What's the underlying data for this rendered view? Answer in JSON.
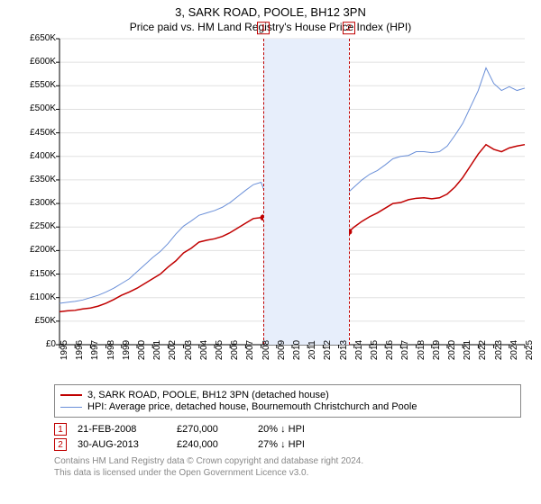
{
  "title": "3, SARK ROAD, POOLE, BH12 3PN",
  "subtitle": "Price paid vs. HM Land Registry's House Price Index (HPI)",
  "chart": {
    "type": "line",
    "background_color": "#ffffff",
    "grid_color": "#e0e0e0",
    "axis_color": "#000000",
    "font_size_tick": 10,
    "x_axis": {
      "min": 1995,
      "max": 2025,
      "step": 1
    },
    "y_axis": {
      "min": 0,
      "max": 650000,
      "ticks": [
        "£0",
        "£50K",
        "£100K",
        "£150K",
        "£200K",
        "£250K",
        "£300K",
        "£350K",
        "£400K",
        "£450K",
        "£500K",
        "£550K",
        "£600K",
        "£650K"
      ]
    },
    "band": {
      "from": 2008.14,
      "to": 2013.66,
      "color": "#e7eefb"
    },
    "markers": [
      {
        "num": "1",
        "x": 2008.14,
        "color": "#c00000"
      },
      {
        "num": "2",
        "x": 2013.66,
        "color": "#c00000"
      }
    ],
    "series": {
      "property": {
        "label": "3, SARK ROAD, POOLE, BH12 3PN (detached house)",
        "color": "#c00000",
        "width": 1.5,
        "data": [
          [
            1995.0,
            70000
          ],
          [
            1995.5,
            72000
          ],
          [
            1996.0,
            73000
          ],
          [
            1996.5,
            76000
          ],
          [
            1997.0,
            78000
          ],
          [
            1997.5,
            82000
          ],
          [
            1998.0,
            88000
          ],
          [
            1998.5,
            96000
          ],
          [
            1999.0,
            105000
          ],
          [
            1999.5,
            112000
          ],
          [
            2000.0,
            120000
          ],
          [
            2000.5,
            130000
          ],
          [
            2001.0,
            140000
          ],
          [
            2001.5,
            150000
          ],
          [
            2002.0,
            165000
          ],
          [
            2002.5,
            178000
          ],
          [
            2003.0,
            195000
          ],
          [
            2003.5,
            205000
          ],
          [
            2004.0,
            218000
          ],
          [
            2004.5,
            222000
          ],
          [
            2005.0,
            225000
          ],
          [
            2005.5,
            230000
          ],
          [
            2006.0,
            238000
          ],
          [
            2006.5,
            248000
          ],
          [
            2007.0,
            258000
          ],
          [
            2007.5,
            268000
          ],
          [
            2008.0,
            270000
          ],
          [
            2008.14,
            270000
          ],
          [
            2008.5,
            255000
          ],
          [
            2009.0,
            225000
          ],
          [
            2009.5,
            235000
          ],
          [
            2010.0,
            248000
          ],
          [
            2010.5,
            252000
          ],
          [
            2011.0,
            250000
          ],
          [
            2011.5,
            246000
          ],
          [
            2012.0,
            250000
          ],
          [
            2012.5,
            248000
          ],
          [
            2013.0,
            242000
          ],
          [
            2013.5,
            240000
          ],
          [
            2013.66,
            240000
          ],
          [
            2014.0,
            250000
          ],
          [
            2014.5,
            262000
          ],
          [
            2015.0,
            272000
          ],
          [
            2015.5,
            280000
          ],
          [
            2016.0,
            290000
          ],
          [
            2016.5,
            300000
          ],
          [
            2017.0,
            302000
          ],
          [
            2017.5,
            308000
          ],
          [
            2018.0,
            311000
          ],
          [
            2018.5,
            312000
          ],
          [
            2019.0,
            310000
          ],
          [
            2019.5,
            312000
          ],
          [
            2020.0,
            320000
          ],
          [
            2020.5,
            335000
          ],
          [
            2021.0,
            355000
          ],
          [
            2021.5,
            380000
          ],
          [
            2022.0,
            405000
          ],
          [
            2022.5,
            425000
          ],
          [
            2023.0,
            415000
          ],
          [
            2023.5,
            410000
          ],
          [
            2024.0,
            418000
          ],
          [
            2024.5,
            422000
          ],
          [
            2025.0,
            425000
          ]
        ],
        "dots": [
          {
            "x": 2008.14,
            "y": 270000
          },
          {
            "x": 2013.66,
            "y": 240000
          }
        ]
      },
      "hpi": {
        "label": "HPI: Average price, detached house, Bournemouth Christchurch and Poole",
        "color": "#6a8fd8",
        "width": 1.0,
        "data": [
          [
            1995.0,
            88000
          ],
          [
            1995.5,
            90000
          ],
          [
            1996.0,
            92000
          ],
          [
            1996.5,
            95000
          ],
          [
            1997.0,
            100000
          ],
          [
            1997.5,
            105000
          ],
          [
            1998.0,
            112000
          ],
          [
            1998.5,
            120000
          ],
          [
            1999.0,
            130000
          ],
          [
            1999.5,
            140000
          ],
          [
            2000.0,
            155000
          ],
          [
            2000.5,
            170000
          ],
          [
            2001.0,
            185000
          ],
          [
            2001.5,
            198000
          ],
          [
            2002.0,
            215000
          ],
          [
            2002.5,
            235000
          ],
          [
            2003.0,
            252000
          ],
          [
            2003.5,
            263000
          ],
          [
            2004.0,
            275000
          ],
          [
            2004.5,
            280000
          ],
          [
            2005.0,
            285000
          ],
          [
            2005.5,
            292000
          ],
          [
            2006.0,
            302000
          ],
          [
            2006.5,
            315000
          ],
          [
            2007.0,
            328000
          ],
          [
            2007.5,
            340000
          ],
          [
            2008.0,
            345000
          ],
          [
            2008.5,
            300000
          ],
          [
            2009.0,
            295000
          ],
          [
            2009.5,
            305000
          ],
          [
            2010.0,
            320000
          ],
          [
            2010.5,
            322000
          ],
          [
            2011.0,
            315000
          ],
          [
            2011.5,
            312000
          ],
          [
            2012.0,
            320000
          ],
          [
            2012.5,
            320000
          ],
          [
            2013.0,
            315000
          ],
          [
            2013.5,
            320000
          ],
          [
            2014.0,
            335000
          ],
          [
            2014.5,
            350000
          ],
          [
            2015.0,
            362000
          ],
          [
            2015.5,
            370000
          ],
          [
            2016.0,
            382000
          ],
          [
            2016.5,
            395000
          ],
          [
            2017.0,
            400000
          ],
          [
            2017.5,
            402000
          ],
          [
            2018.0,
            410000
          ],
          [
            2018.5,
            410000
          ],
          [
            2019.0,
            408000
          ],
          [
            2019.5,
            410000
          ],
          [
            2020.0,
            422000
          ],
          [
            2020.5,
            445000
          ],
          [
            2021.0,
            470000
          ],
          [
            2021.5,
            505000
          ],
          [
            2022.0,
            540000
          ],
          [
            2022.5,
            588000
          ],
          [
            2023.0,
            555000
          ],
          [
            2023.5,
            540000
          ],
          [
            2024.0,
            548000
          ],
          [
            2024.5,
            540000
          ],
          [
            2025.0,
            545000
          ]
        ]
      }
    }
  },
  "legend": {
    "border_color": "#888888",
    "items": [
      {
        "label_ref": "chart.series.property.label",
        "color": "#c00000",
        "w": 2
      },
      {
        "label_ref": "chart.series.hpi.label",
        "color": "#6a8fd8",
        "w": 1
      }
    ]
  },
  "sales": [
    {
      "num": "1",
      "date": "21-FEB-2008",
      "price": "£270,000",
      "diff": "20% ↓ HPI",
      "color": "#c00000"
    },
    {
      "num": "2",
      "date": "30-AUG-2013",
      "price": "£240,000",
      "diff": "27% ↓ HPI",
      "color": "#c00000"
    }
  ],
  "attribution": {
    "color": "#888888",
    "line1": "Contains HM Land Registry data © Crown copyright and database right 2024.",
    "line2": "This data is licensed under the Open Government Licence v3.0."
  }
}
